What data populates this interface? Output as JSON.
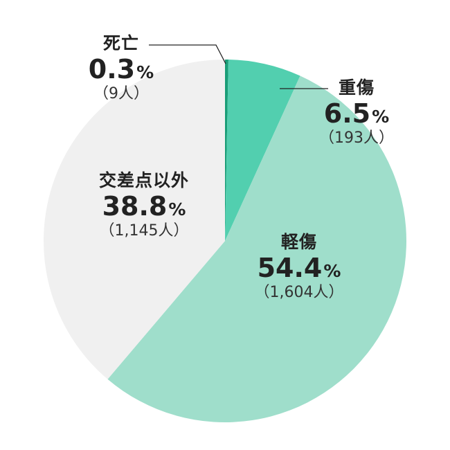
{
  "chart_data": {
    "type": "pie",
    "slices": [
      {
        "name": "死亡",
        "pct": "0.3",
        "unit": "%",
        "count": "（9人）",
        "value": 0.3,
        "color": "#1a9e78"
      },
      {
        "name": "重傷",
        "pct": "6.5",
        "unit": "%",
        "count": "（193人）",
        "value": 6.5,
        "color": "#52cfaf"
      },
      {
        "name": "軽傷",
        "pct": "54.4",
        "unit": "%",
        "count": "（1,604人）",
        "value": 54.4,
        "color": "#9fdecb"
      },
      {
        "name": "交差点以外",
        "pct": "38.8",
        "unit": "%",
        "count": "（1,145人）",
        "value": 38.8,
        "color": "#f0f0f0"
      }
    ]
  }
}
